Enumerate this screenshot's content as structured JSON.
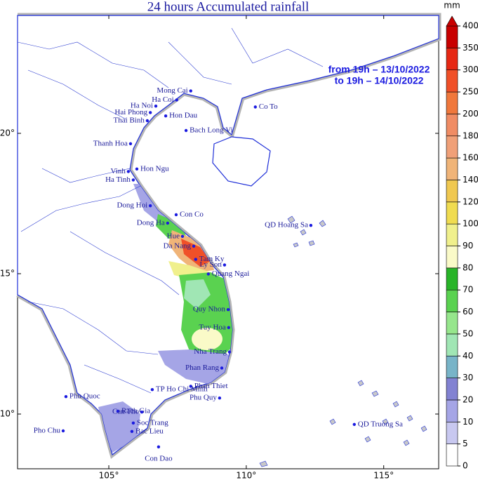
{
  "title": "24 hours Accumulated rainfall",
  "period": [
    "from 19h – 13/10/2022",
    "to 19h – 14/10/2022"
  ],
  "map": {
    "xlim": [
      101.68,
      117.0
    ],
    "ylim": [
      8.05,
      24.2
    ],
    "xticks": [
      {
        "value": 105,
        "label": "105°"
      },
      {
        "value": 110,
        "label": "110°"
      },
      {
        "value": 115,
        "label": "115°"
      }
    ],
    "yticks": [
      {
        "value": 10,
        "label": "10°"
      },
      {
        "value": 15,
        "label": "15°"
      },
      {
        "value": 20,
        "label": "20°"
      }
    ]
  },
  "stations": [
    {
      "name": "Mong Cai",
      "lon": 107.98,
      "lat": 21.51
    },
    {
      "name": "Ha Coi",
      "lon": 107.47,
      "lat": 21.19
    },
    {
      "name": "Ha Noi",
      "lon": 106.71,
      "lat": 20.97
    },
    {
      "name": "Co To",
      "lon": 110.33,
      "lat": 20.94
    },
    {
      "name": "Hai Phong",
      "lon": 106.51,
      "lat": 20.74
    },
    {
      "name": "Hon Dau",
      "lon": 107.07,
      "lat": 20.62
    },
    {
      "name": "Thai Binh",
      "lon": 106.4,
      "lat": 20.45
    },
    {
      "name": "Bach Long Vi",
      "lon": 107.81,
      "lat": 20.1
    },
    {
      "name": "Thanh Hoa",
      "lon": 105.79,
      "lat": 19.63
    },
    {
      "name": "Hon Ngu",
      "lon": 106.02,
      "lat": 18.73
    },
    {
      "name": "Vinh",
      "lon": 105.71,
      "lat": 18.64
    },
    {
      "name": "Ha Tinh",
      "lon": 105.89,
      "lat": 18.34
    },
    {
      "name": "Dong Hoi",
      "lon": 106.51,
      "lat": 17.42
    },
    {
      "name": "Con Co",
      "lon": 107.45,
      "lat": 17.1
    },
    {
      "name": "Dong Ha",
      "lon": 107.14,
      "lat": 16.8
    },
    {
      "name": "Hue",
      "lon": 107.68,
      "lat": 16.33
    },
    {
      "name": "Da Nang",
      "lon": 108.09,
      "lat": 15.98
    },
    {
      "name": "Tam Ky",
      "lon": 108.16,
      "lat": 15.51
    },
    {
      "name": "Ly Son",
      "lon": 109.21,
      "lat": 15.31
    },
    {
      "name": "Quang Ngai",
      "lon": 108.62,
      "lat": 14.99
    },
    {
      "name": "QD Hoang Sa",
      "lon": 112.35,
      "lat": 16.72
    },
    {
      "name": "Quy Nhon",
      "lon": 109.34,
      "lat": 13.72
    },
    {
      "name": "Tuy Hoa",
      "lon": 109.36,
      "lat": 13.08
    },
    {
      "name": "Nha Trang",
      "lon": 109.39,
      "lat": 12.21
    },
    {
      "name": "Phan Rang",
      "lon": 109.11,
      "lat": 11.64
    },
    {
      "name": "Phan Thiet",
      "lon": 107.98,
      "lat": 10.99
    },
    {
      "name": "Phu Quy",
      "lon": 109.03,
      "lat": 10.57
    },
    {
      "name": "TP Ho Chi Minh",
      "lon": 106.58,
      "lat": 10.87
    },
    {
      "name": "Phu Quoc",
      "lon": 103.44,
      "lat": 10.62
    },
    {
      "name": "Rach Gia",
      "lon": 105.33,
      "lat": 10.1
    },
    {
      "name": "Can Tho",
      "lon": 106.2,
      "lat": 10.07
    },
    {
      "name": "Soc Trang",
      "lon": 105.89,
      "lat": 9.68
    },
    {
      "name": "Pho Chu",
      "lon": 103.34,
      "lat": 9.4
    },
    {
      "name": "Bac Lieu",
      "lon": 105.84,
      "lat": 9.38
    },
    {
      "name": "Con Dao",
      "lon": 106.81,
      "lat": 8.83
    },
    {
      "name": "QD Truong Sa",
      "lon": 113.93,
      "lat": 9.63
    }
  ],
  "colorbar": {
    "unit": "mm",
    "levels": [
      0,
      5,
      10,
      20,
      30,
      40,
      50,
      60,
      70,
      80,
      90,
      100,
      120,
      140,
      160,
      180,
      200,
      250,
      300,
      350,
      400
    ],
    "colors": [
      "#ffffff",
      "#c8c8f0",
      "#a5a5e6",
      "#8282d2",
      "#78b4c8",
      "#a0e6b4",
      "#96e68c",
      "#5ad250",
      "#28b428",
      "#fafac8",
      "#f0f08c",
      "#f0dc50",
      "#f0c850",
      "#f0b478",
      "#f0a078",
      "#f08c64",
      "#f0783c",
      "#f05028",
      "#e62814",
      "#c80000"
    ]
  }
}
